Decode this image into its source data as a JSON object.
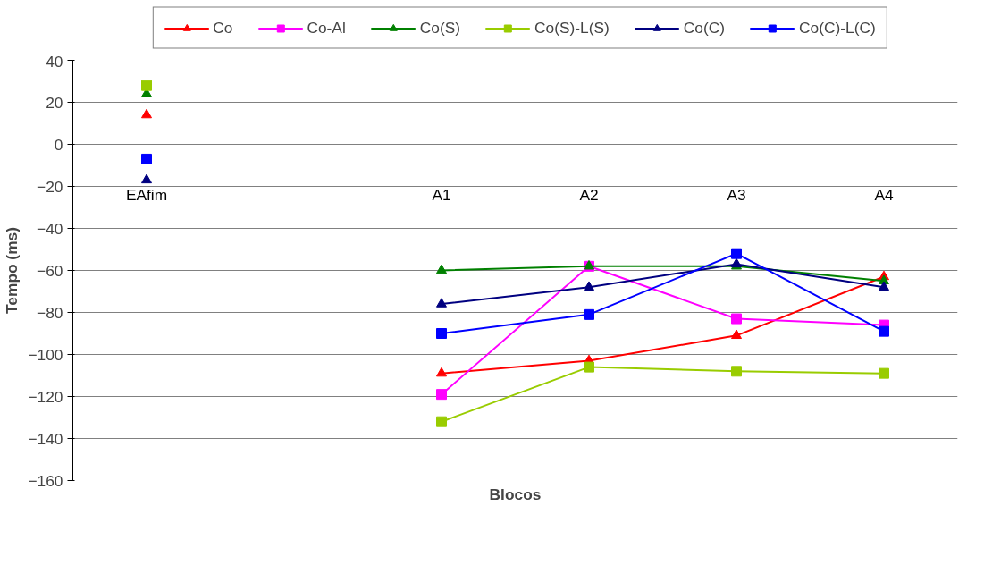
{
  "chart_data": {
    "type": "line",
    "xlabel": "Blocos",
    "ylabel": "Tempo (ms)",
    "categories": [
      "EAfim",
      null,
      "A1",
      "A2",
      "A3",
      "A4"
    ],
    "ylim": [
      -160,
      40
    ],
    "yticks": [
      -160,
      -140,
      -120,
      -100,
      -80,
      -60,
      -40,
      -20,
      0,
      20,
      40
    ],
    "grid": "y",
    "legend": "top",
    "series": [
      {
        "name": "Co",
        "color": "#ff0000",
        "marker": "triangle",
        "values": [
          14,
          null,
          -109,
          -103,
          -91,
          -63
        ]
      },
      {
        "name": "Co-Al",
        "color": "#ff00ff",
        "marker": "square",
        "values": [
          null,
          null,
          -119,
          -58,
          -83,
          -86
        ]
      },
      {
        "name": "Co(S)",
        "color": "#008000",
        "marker": "triangle",
        "values": [
          24,
          null,
          -60,
          -58,
          -58,
          -65
        ]
      },
      {
        "name": "Co(S)-L(S)",
        "color": "#99cc00",
        "marker": "square",
        "values": [
          28,
          null,
          -132,
          -106,
          -108,
          -109
        ]
      },
      {
        "name": "Co(C)",
        "color": "#000080",
        "marker": "triangle",
        "values": [
          -17,
          null,
          -76,
          -68,
          -57,
          -68
        ]
      },
      {
        "name": "Co(C)-L(C)",
        "color": "#0000ff",
        "marker": "square",
        "values": [
          -7,
          null,
          -90,
          -81,
          -52,
          -89
        ]
      }
    ]
  }
}
